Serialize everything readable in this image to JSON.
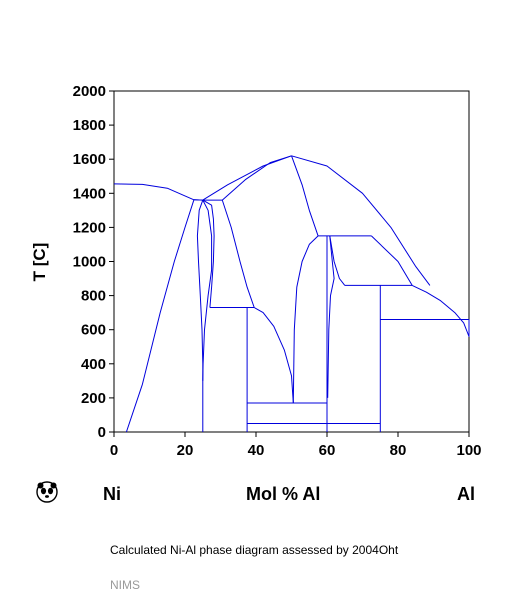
{
  "chart_data": {
    "type": "phase-diagram",
    "title": "",
    "xlabel": "Mol % Al",
    "ylabel": "T [C]",
    "xlim": [
      0,
      100
    ],
    "ylim": [
      0,
      2000
    ],
    "x_ticks": [
      0,
      20,
      40,
      60,
      80,
      100
    ],
    "y_ticks": [
      0,
      200,
      400,
      600,
      800,
      1000,
      1200,
      1400,
      1600,
      1800,
      2000
    ],
    "left_element": "Ni",
    "right_element": "Al",
    "grid": false,
    "line_color": "#0000dd",
    "boundaries": [
      {
        "points": [
          [
            0,
            1455
          ],
          [
            8,
            1452
          ],
          [
            15,
            1430
          ],
          [
            20,
            1385
          ],
          [
            22.5,
            1362
          ],
          [
            25,
            1360
          ]
        ]
      },
      {
        "points": [
          [
            3.5,
            0
          ],
          [
            8,
            280
          ],
          [
            13,
            700
          ],
          [
            17,
            1000
          ],
          [
            20,
            1200
          ],
          [
            22.5,
            1362
          ]
        ]
      },
      {
        "points": [
          [
            22.5,
            1362
          ],
          [
            25,
            1360
          ]
        ]
      },
      {
        "points": [
          [
            25,
            1360
          ],
          [
            24,
            1300
          ],
          [
            23.5,
            1150
          ],
          [
            23.8,
            1000
          ],
          [
            24.3,
            800
          ],
          [
            24.8,
            600
          ],
          [
            25,
            400
          ],
          [
            25,
            0
          ]
        ]
      },
      {
        "points": [
          [
            25,
            1360
          ],
          [
            26.5,
            1300
          ],
          [
            27.5,
            1150
          ],
          [
            27.5,
            950
          ],
          [
            26.5,
            800
          ],
          [
            25.5,
            600
          ],
          [
            25.1,
            400
          ],
          [
            25,
            300
          ]
        ]
      },
      {
        "points": [
          [
            25,
            1360
          ],
          [
            27.5,
            1330
          ],
          [
            28,
            1250
          ],
          [
            28.2,
            1150
          ],
          [
            28,
            1000
          ],
          [
            27.5,
            850
          ],
          [
            27,
            730
          ]
        ]
      },
      {
        "points": [
          [
            25,
            1360
          ],
          [
            30.5,
            1360
          ]
        ]
      },
      {
        "points": [
          [
            30.5,
            1360
          ],
          [
            33,
            1200
          ],
          [
            35.5,
            1000
          ],
          [
            37.5,
            850
          ],
          [
            39.5,
            730
          ]
        ]
      },
      {
        "points": [
          [
            27,
            730
          ],
          [
            39.5,
            730
          ]
        ]
      },
      {
        "points": [
          [
            39.5,
            730
          ],
          [
            42,
            700
          ],
          [
            45,
            620
          ],
          [
            48,
            480
          ],
          [
            50,
            330
          ],
          [
            50.5,
            170
          ]
        ]
      },
      {
        "points": [
          [
            30.5,
            1360
          ],
          [
            37,
            1480
          ],
          [
            44,
            1580
          ],
          [
            50,
            1620
          ]
        ]
      },
      {
        "points": [
          [
            25,
            1360
          ],
          [
            32,
            1450
          ],
          [
            42,
            1560
          ],
          [
            50,
            1620
          ]
        ]
      },
      {
        "points": [
          [
            50,
            1620
          ],
          [
            60,
            1560
          ],
          [
            70,
            1400
          ],
          [
            78,
            1200
          ],
          [
            85,
            970
          ],
          [
            89,
            860
          ]
        ]
      },
      {
        "points": [
          [
            50,
            1620
          ],
          [
            53,
            1450
          ],
          [
            55,
            1300
          ],
          [
            57.5,
            1150
          ]
        ]
      },
      {
        "points": [
          [
            57.5,
            1150
          ],
          [
            72.5,
            1150
          ]
        ]
      },
      {
        "points": [
          [
            72.5,
            1150
          ],
          [
            80,
            1000
          ],
          [
            84,
            860
          ]
        ]
      },
      {
        "points": [
          [
            50.5,
            170
          ],
          [
            50.8,
            600
          ],
          [
            51.5,
            850
          ],
          [
            53,
            1000
          ],
          [
            55,
            1100
          ],
          [
            57.5,
            1150
          ]
        ]
      },
      {
        "points": [
          [
            60,
            1150
          ],
          [
            60,
            0
          ]
        ]
      },
      {
        "points": [
          [
            60.8,
            1150
          ],
          [
            61.5,
            1000
          ],
          [
            62,
            900
          ],
          [
            61,
            800
          ],
          [
            60.5,
            600
          ],
          [
            60.2,
            200
          ]
        ]
      },
      {
        "points": [
          [
            60.8,
            1150
          ],
          [
            62,
            1000
          ],
          [
            63.5,
            900
          ],
          [
            65,
            860
          ]
        ]
      },
      {
        "points": [
          [
            65,
            860
          ],
          [
            84,
            860
          ]
        ]
      },
      {
        "points": [
          [
            75,
            860
          ],
          [
            75,
            0
          ]
        ]
      },
      {
        "points": [
          [
            84,
            860
          ],
          [
            88,
            820
          ],
          [
            92,
            770
          ],
          [
            96,
            700
          ],
          [
            98.5,
            640
          ],
          [
            100,
            560
          ],
          [
            100,
            660
          ]
        ]
      },
      {
        "points": [
          [
            75,
            660
          ],
          [
            100,
            660
          ]
        ]
      },
      {
        "points": [
          [
            37.5,
            730
          ],
          [
            37.5,
            0
          ]
        ]
      },
      {
        "points": [
          [
            37.5,
            170
          ],
          [
            60,
            170
          ]
        ]
      },
      {
        "points": [
          [
            37.5,
            50
          ],
          [
            75,
            50
          ]
        ]
      }
    ]
  },
  "caption": "Calculated Ni-Al phase diagram assessed by 2004Oht",
  "source": "NIMS",
  "logo_icon": "panda-logo-icon"
}
